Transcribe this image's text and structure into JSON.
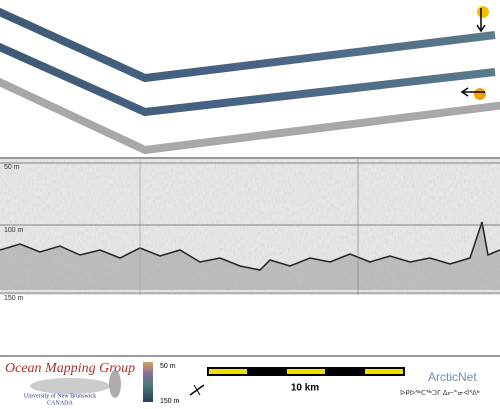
{
  "swath_panel": {},
  "profile_panel": {
    "depth_labels": [
      "50 m",
      "100 m",
      "150 m"
    ]
  },
  "footer": {
    "logo": {
      "title": "Ocean Mapping Group",
      "university": "University of New Brunswick",
      "country": "CANADA"
    },
    "color_scale": {
      "top_label": "50 m",
      "bottom_label": "150 m"
    },
    "scale_bar": {
      "label": "10 km"
    },
    "partner": {
      "name": "ArcticNet",
      "syllabics": "ᐅᑭᐅᖅᑕᖅᑐᒥ ᐃᓕᓐᓂᐊᕐᕕᒃ"
    }
  }
}
